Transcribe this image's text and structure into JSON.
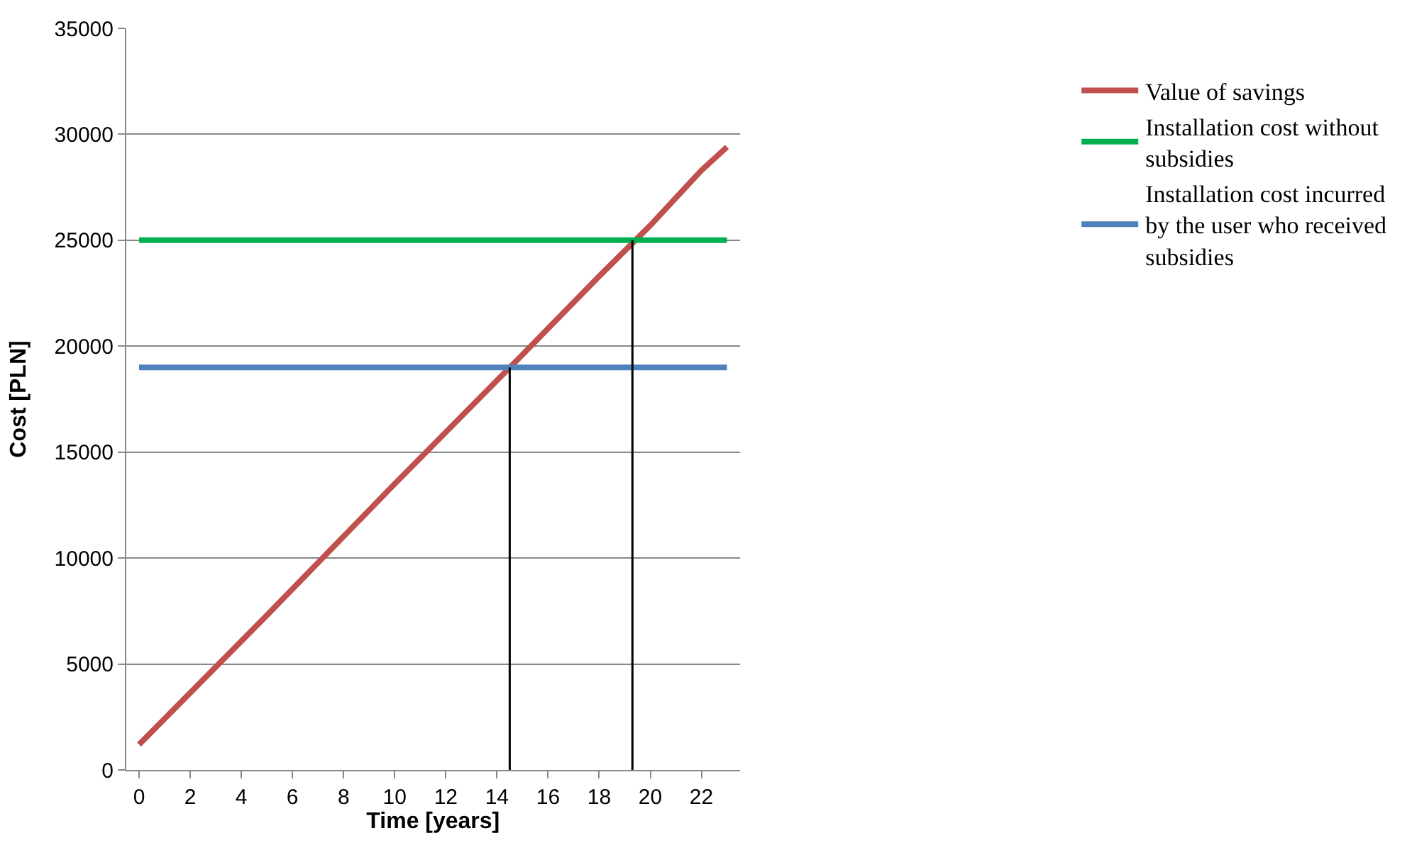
{
  "chart_data": {
    "type": "line",
    "xlabel": "Time [years]",
    "ylabel": "Cost [PLN]",
    "xlim": [
      -0.5,
      23.5
    ],
    "xticks": [
      0,
      2,
      4,
      6,
      8,
      10,
      12,
      14,
      16,
      18,
      20,
      22
    ],
    "ylim": [
      0,
      35000
    ],
    "yticks": [
      0,
      5000,
      10000,
      15000,
      20000,
      25000,
      30000,
      35000
    ],
    "grid": "y",
    "legend": "right",
    "marker": "none",
    "line_style": "solid",
    "series": [
      {
        "name": "Value of savings",
        "color": "#c0504d",
        "x": [
          0,
          5,
          10,
          15,
          18,
          20,
          22,
          23
        ],
        "values": [
          1200,
          7300,
          13500,
          19600,
          23300,
          25700,
          28300,
          29400
        ]
      },
      {
        "name": "Installation cost without subsidies",
        "color": "#00b050",
        "x": [
          0,
          23
        ],
        "values": [
          25000,
          25000
        ]
      },
      {
        "name": "Installation cost incurred by the user who received subsidies",
        "color": "#4f81bd",
        "x": [
          0,
          23
        ],
        "values": [
          19000,
          19000
        ]
      },
      {
        "color": "#000000",
        "x": [
          14.5,
          14.5
        ],
        "values": [
          0,
          19000
        ]
      },
      {
        "color": "#000000",
        "x": [
          19.3,
          19.3
        ],
        "values": [
          0,
          25000
        ]
      }
    ]
  }
}
